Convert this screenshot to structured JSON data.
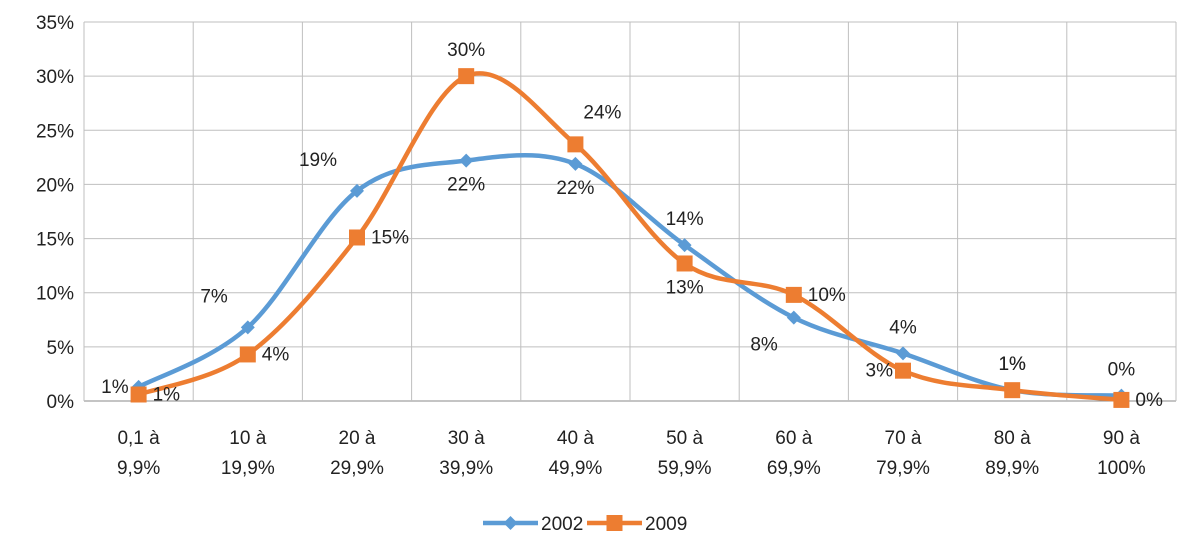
{
  "chart_data": {
    "type": "line",
    "title": "",
    "xlabel": "",
    "ylabel": "",
    "ylim": [
      0,
      35
    ],
    "y_ticks": [
      "0%",
      "5%",
      "10%",
      "15%",
      "20%",
      "25%",
      "30%",
      "35%"
    ],
    "categories": [
      [
        "0,1 à",
        "9,9%"
      ],
      [
        "10 à",
        "19,9%"
      ],
      [
        "20 à",
        "29,9%"
      ],
      [
        "30 à",
        "39,9%"
      ],
      [
        "40 à",
        "49,9%"
      ],
      [
        "50 à",
        "59,9%"
      ],
      [
        "60 à",
        "69,9%"
      ],
      [
        "70 à",
        "79,9%"
      ],
      [
        "80 à",
        "89,9%"
      ],
      [
        "90 à",
        "100%"
      ]
    ],
    "grid": true,
    "smooth": true,
    "legend_position": "bottom",
    "series": [
      {
        "name": "2002",
        "color": "#5B9BD5",
        "marker": "diamond",
        "values": [
          1.3,
          6.8,
          19.4,
          22.2,
          21.9,
          14.4,
          7.7,
          4.4,
          1.0,
          0.5
        ],
        "labels": [
          "1%",
          "7%",
          "19%",
          "22%",
          "22%",
          "14%",
          "8%",
          "4%",
          "1%",
          "0%"
        ],
        "label_placements": [
          "left",
          "above-left",
          "above-left",
          "below",
          "below",
          "above",
          "below-left",
          "above",
          "above",
          "above"
        ]
      },
      {
        "name": "2009",
        "color": "#ED7D31",
        "marker": "square",
        "values": [
          0.6,
          4.3,
          15.1,
          30.0,
          23.7,
          12.7,
          9.8,
          2.8,
          1.0,
          0.1
        ],
        "labels": [
          "1%",
          "4%",
          "15%",
          "30%",
          "24%",
          "13%",
          "10%",
          "3%",
          "1%",
          "0%"
        ],
        "label_placements": [
          "right",
          "right",
          "right",
          "above",
          "above-right",
          "below",
          "right",
          "left",
          "above",
          "right"
        ]
      }
    ]
  }
}
